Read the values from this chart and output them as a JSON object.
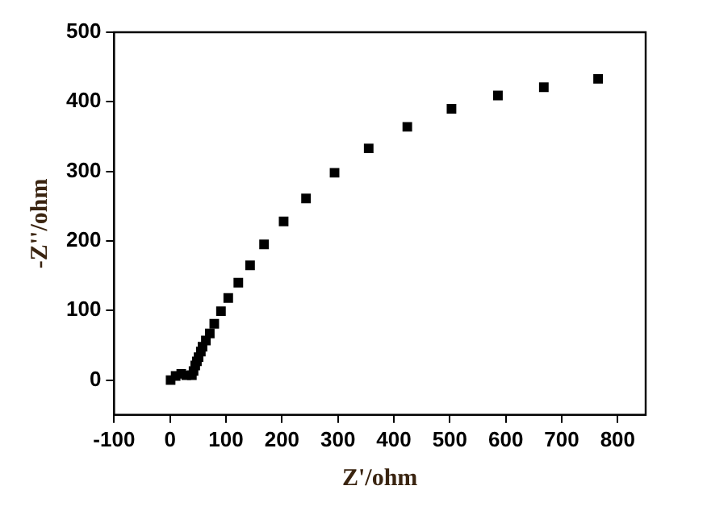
{
  "chart_data": {
    "type": "scatter",
    "xlabel": "Z'/ohm",
    "ylabel": "-Z''/ohm",
    "x": [
      1,
      10,
      20,
      29,
      39,
      42,
      45,
      48,
      51,
      55,
      58,
      64,
      71,
      79,
      91,
      104,
      122,
      143,
      168,
      203,
      243,
      294,
      355,
      424,
      503,
      586,
      668,
      765
    ],
    "series": [
      {
        "color": "#000000",
        "values": [
          0,
          6,
          9,
          7,
          7,
          13,
          21,
          27,
          33,
          41,
          48,
          57,
          67,
          81,
          99,
          118,
          140,
          165,
          195,
          228,
          261,
          298,
          333,
          364,
          390,
          409,
          421,
          433
        ]
      }
    ],
    "xlim": [
      -100,
      850
    ],
    "xticks": [
      -100,
      0,
      100,
      200,
      300,
      400,
      500,
      600,
      700,
      800
    ],
    "ylim": [
      -50,
      500
    ],
    "yticks": [
      0,
      100,
      200,
      300,
      400,
      500
    ],
    "marker": "square",
    "grid": false,
    "legend": false
  }
}
